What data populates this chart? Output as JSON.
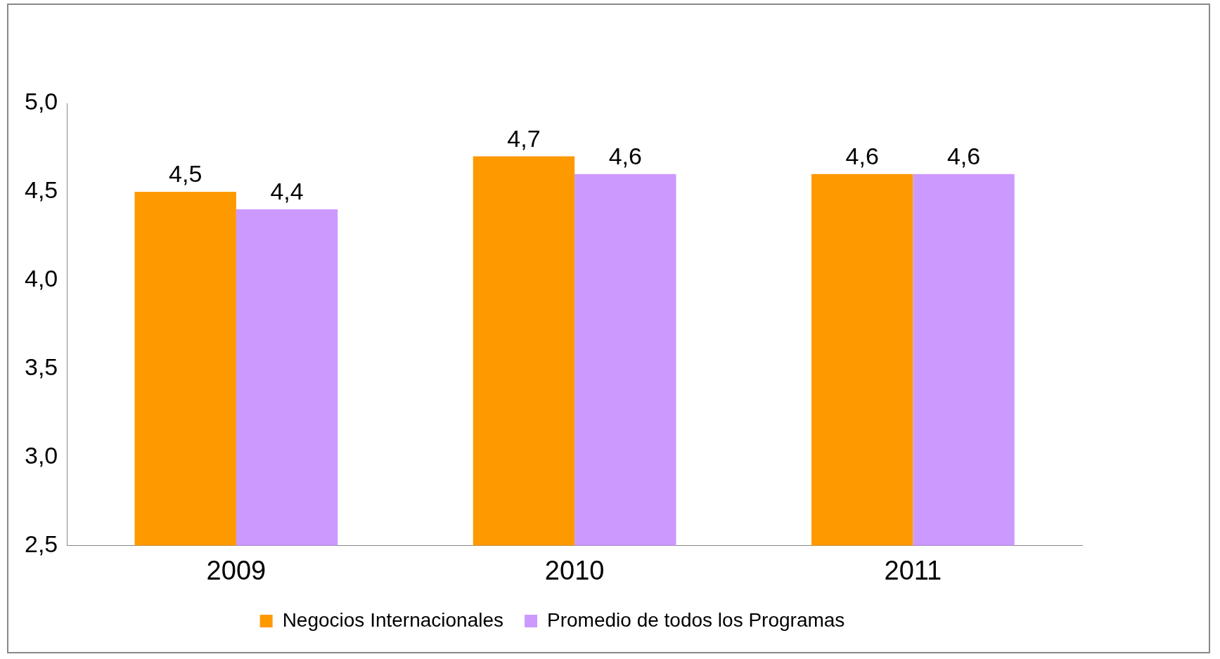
{
  "chart_data": {
    "type": "bar",
    "categories": [
      "2009",
      "2010",
      "2011"
    ],
    "series": [
      {
        "name": "Negocios Internacionales",
        "color": "#ff9900",
        "values": [
          4.5,
          4.7,
          4.6
        ],
        "value_labels": [
          "4,5",
          "4,7",
          "4,6"
        ]
      },
      {
        "name": "Promedio de todos los Programas",
        "color": "#cc99ff",
        "values": [
          4.4,
          4.6,
          4.6
        ],
        "value_labels": [
          "4,4",
          "4,6",
          "4,6"
        ]
      }
    ],
    "ylim": [
      2.5,
      5.0
    ],
    "yticks": [
      {
        "value": 2.5,
        "label": "2,5"
      },
      {
        "value": 3,
        "label": "3,0"
      },
      {
        "value": 3.5,
        "label": "3,5"
      },
      {
        "value": 4,
        "label": "4,0"
      },
      {
        "value": 4.5,
        "label": "4,5"
      },
      {
        "value": 5,
        "label": "5,0"
      }
    ],
    "grid": false,
    "legend": "bottom"
  }
}
